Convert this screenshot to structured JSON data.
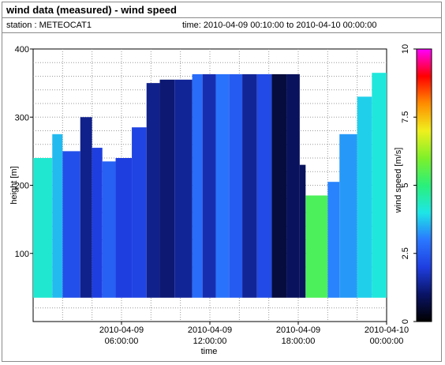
{
  "header": {
    "title": "wind data (measured) - wind speed",
    "station": "station : METEOCAT1",
    "time_range": "time: 2010-04-09 00:10:00 to 2010-04-10 00:00:00"
  },
  "chart_data": {
    "type": "heatmap",
    "title": "wind data (measured) - wind speed",
    "xlabel": "time",
    "ylabel": "height [m]",
    "colorbar_label": "wind speed [m/s]",
    "x_range_hours": [
      0,
      24
    ],
    "y_range_m": [
      0,
      400
    ],
    "x_ticks": [
      {
        "hour": 6,
        "line1": "2010-04-09",
        "line2": "06:00:00"
      },
      {
        "hour": 12,
        "line1": "2010-04-09",
        "line2": "12:00:00"
      },
      {
        "hour": 18,
        "line1": "2010-04-09",
        "line2": "18:00:00"
      },
      {
        "hour": 24,
        "line1": "2010-04-10",
        "line2": "00:00:00"
      }
    ],
    "y_ticks": [
      100,
      200,
      300,
      400
    ],
    "colorbar_ticks": [
      0,
      2.5,
      5,
      7.5,
      10
    ],
    "colorbar_range": [
      0,
      10
    ],
    "colormap": [
      "#000000",
      "#0a1466",
      "#1f3ee0",
      "#2a78ff",
      "#1ee6e6",
      "#2af07a",
      "#7ef02a",
      "#f0f01e",
      "#ff8c00",
      "#ff0000",
      "#ff00ff"
    ],
    "height_min_m": 35,
    "segments": [
      {
        "start": 0.0,
        "end": 1.3,
        "top": 240,
        "speed": 4.2
      },
      {
        "start": 1.3,
        "end": 2.0,
        "top": 275,
        "speed": 3.6
      },
      {
        "start": 2.0,
        "end": 3.2,
        "top": 250,
        "speed": 2.3
      },
      {
        "start": 3.2,
        "end": 4.0,
        "top": 300,
        "speed": 1.3
      },
      {
        "start": 4.0,
        "end": 4.7,
        "top": 255,
        "speed": 2.0
      },
      {
        "start": 4.7,
        "end": 5.6,
        "top": 235,
        "speed": 2.6
      },
      {
        "start": 5.6,
        "end": 6.7,
        "top": 240,
        "speed": 2.0
      },
      {
        "start": 6.7,
        "end": 7.7,
        "top": 285,
        "speed": 2.1
      },
      {
        "start": 7.7,
        "end": 8.6,
        "top": 350,
        "speed": 1.3
      },
      {
        "start": 8.6,
        "end": 9.6,
        "top": 355,
        "speed": 1.1
      },
      {
        "start": 9.6,
        "end": 10.8,
        "top": 355,
        "speed": 1.4
      },
      {
        "start": 10.8,
        "end": 11.5,
        "top": 363,
        "speed": 2.8
      },
      {
        "start": 11.5,
        "end": 12.4,
        "top": 363,
        "speed": 1.6
      },
      {
        "start": 12.4,
        "end": 13.3,
        "top": 363,
        "speed": 2.9
      },
      {
        "start": 13.3,
        "end": 14.2,
        "top": 363,
        "speed": 2.5
      },
      {
        "start": 14.2,
        "end": 15.2,
        "top": 363,
        "speed": 1.4
      },
      {
        "start": 15.2,
        "end": 16.2,
        "top": 363,
        "speed": 2.2
      },
      {
        "start": 16.2,
        "end": 17.2,
        "top": 363,
        "speed": 0.6
      },
      {
        "start": 17.2,
        "end": 18.1,
        "top": 363,
        "speed": 0.9
      },
      {
        "start": 18.1,
        "end": 18.5,
        "top": 230,
        "speed": 0.9
      },
      {
        "start": 18.5,
        "end": 20.0,
        "top": 185,
        "speed": 5.4
      },
      {
        "start": 20.0,
        "end": 20.8,
        "top": 205,
        "speed": 3.1
      },
      {
        "start": 20.8,
        "end": 22.0,
        "top": 275,
        "speed": 3.3
      },
      {
        "start": 22.0,
        "end": 23.0,
        "top": 330,
        "speed": 3.8
      },
      {
        "start": 23.0,
        "end": 24.0,
        "top": 365,
        "speed": 4.1
      }
    ]
  }
}
